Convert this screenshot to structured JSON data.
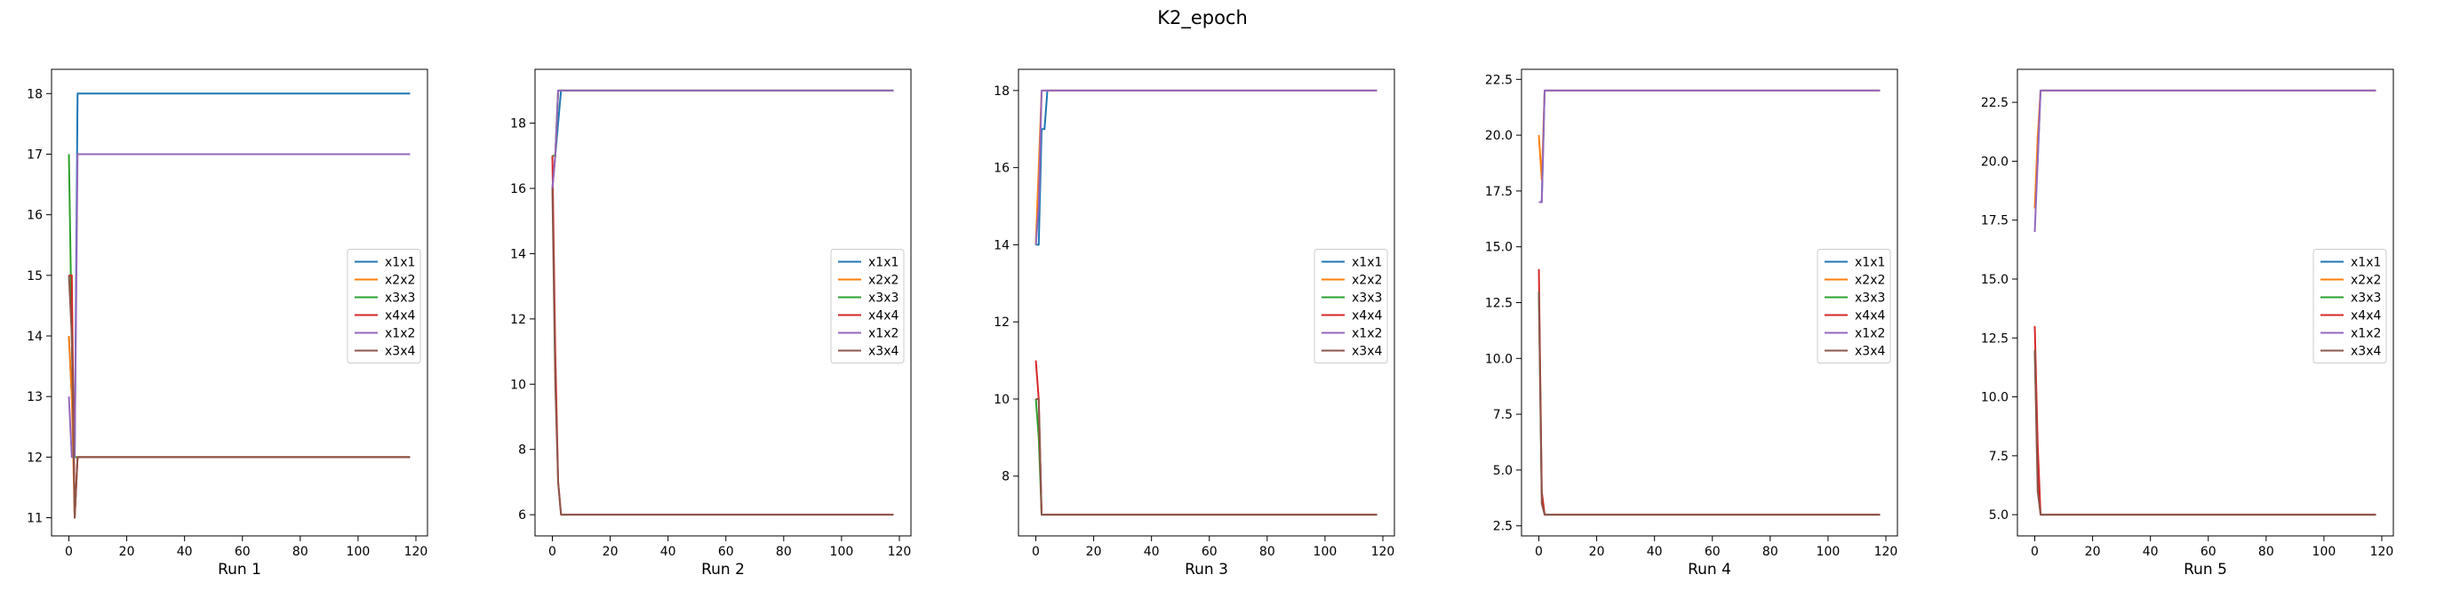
{
  "figure": {
    "title": "K2_epoch"
  },
  "colors": {
    "x1x1": "#1f77b4",
    "x2x2": "#ff7f0e",
    "x3x3": "#2ca02c",
    "x4x4": "#d62728",
    "x1x2": "#9467bd",
    "x3x4": "#8c564b"
  },
  "chart_data": [
    {
      "type": "line",
      "xlabel": "Run 1",
      "xlim": [
        -6,
        124
      ],
      "ylim": [
        10.7,
        18.4
      ],
      "xticks": [
        0,
        20,
        40,
        60,
        80,
        100,
        120
      ],
      "yticks": [
        11,
        12,
        13,
        14,
        15,
        16,
        17,
        18
      ],
      "ytick_labels": [
        "11",
        "12",
        "13",
        "14",
        "15",
        "16",
        "17",
        "18"
      ],
      "legend_position": "center-right",
      "series": [
        {
          "name": "x1x1",
          "points": [
            [
              0,
              14
            ],
            [
              1,
              13
            ],
            [
              2,
              12
            ],
            [
              3,
              18
            ],
            [
              118,
              18
            ]
          ]
        },
        {
          "name": "x2x2",
          "points": [
            [
              0,
              14
            ],
            [
              1,
              13
            ],
            [
              2,
              11
            ],
            [
              3,
              12
            ],
            [
              118,
              12
            ]
          ]
        },
        {
          "name": "x3x3",
          "points": [
            [
              0,
              17
            ],
            [
              1,
              14
            ],
            [
              2,
              12
            ],
            [
              3,
              12
            ],
            [
              118,
              12
            ]
          ]
        },
        {
          "name": "x4x4",
          "points": [
            [
              0,
              15
            ],
            [
              1,
              15
            ],
            [
              2,
              11
            ],
            [
              3,
              12
            ],
            [
              118,
              12
            ]
          ]
        },
        {
          "name": "x1x2",
          "points": [
            [
              0,
              13
            ],
            [
              1,
              12
            ],
            [
              2,
              12
            ],
            [
              3,
              17
            ],
            [
              118,
              17
            ]
          ]
        },
        {
          "name": "x3x4",
          "points": [
            [
              0,
              15
            ],
            [
              1,
              14
            ],
            [
              2,
              11
            ],
            [
              3,
              12
            ],
            [
              118,
              12
            ]
          ]
        }
      ]
    },
    {
      "type": "line",
      "xlabel": "Run 2",
      "xlim": [
        -6,
        124
      ],
      "ylim": [
        5.35,
        19.65
      ],
      "xticks": [
        0,
        20,
        40,
        60,
        80,
        100,
        120
      ],
      "yticks": [
        6,
        8,
        10,
        12,
        14,
        16,
        18
      ],
      "ytick_labels": [
        "6",
        "8",
        "10",
        "12",
        "14",
        "16",
        "18"
      ],
      "legend_position": "center-right",
      "series": [
        {
          "name": "x1x1",
          "points": [
            [
              0,
              16
            ],
            [
              1,
              17
            ],
            [
              2,
              18
            ],
            [
              3,
              19
            ],
            [
              118,
              19
            ]
          ]
        },
        {
          "name": "x2x2",
          "points": [
            [
              0,
              16
            ],
            [
              1,
              17
            ],
            [
              2,
              19
            ],
            [
              3,
              19
            ],
            [
              118,
              19
            ]
          ]
        },
        {
          "name": "x3x3",
          "points": [
            [
              0,
              17
            ],
            [
              1,
              17
            ],
            [
              2,
              19
            ],
            [
              3,
              19
            ],
            [
              118,
              19
            ]
          ]
        },
        {
          "name": "x4x4",
          "points": [
            [
              0,
              17
            ],
            [
              1,
              11
            ],
            [
              2,
              7
            ],
            [
              3,
              6
            ],
            [
              118,
              6
            ]
          ]
        },
        {
          "name": "x1x2",
          "points": [
            [
              0,
              16
            ],
            [
              1,
              17
            ],
            [
              2,
              19
            ],
            [
              3,
              19
            ],
            [
              118,
              19
            ]
          ]
        },
        {
          "name": "x3x4",
          "points": [
            [
              0,
              16
            ],
            [
              1,
              10
            ],
            [
              2,
              7
            ],
            [
              3,
              6
            ],
            [
              118,
              6
            ]
          ]
        }
      ]
    },
    {
      "type": "line",
      "xlabel": "Run 3",
      "xlim": [
        -6,
        124
      ],
      "ylim": [
        6.45,
        18.55
      ],
      "xticks": [
        0,
        20,
        40,
        60,
        80,
        100,
        120
      ],
      "yticks": [
        8,
        10,
        12,
        14,
        16,
        18
      ],
      "ytick_labels": [
        "8",
        "10",
        "12",
        "14",
        "16",
        "18"
      ],
      "legend_position": "center-right",
      "series": [
        {
          "name": "x1x1",
          "points": [
            [
              0,
              14
            ],
            [
              1,
              14
            ],
            [
              2,
              17
            ],
            [
              3,
              17
            ],
            [
              4,
              18
            ],
            [
              118,
              18
            ]
          ]
        },
        {
          "name": "x2x2",
          "points": [
            [
              0,
              14
            ],
            [
              1,
              16
            ],
            [
              2,
              18
            ],
            [
              3,
              18
            ],
            [
              118,
              18
            ]
          ]
        },
        {
          "name": "x3x3",
          "points": [
            [
              0,
              10
            ],
            [
              1,
              9
            ],
            [
              2,
              7
            ],
            [
              3,
              7
            ],
            [
              118,
              7
            ]
          ]
        },
        {
          "name": "x4x4",
          "points": [
            [
              0,
              11
            ],
            [
              1,
              10
            ],
            [
              2,
              7
            ],
            [
              3,
              7
            ],
            [
              118,
              7
            ]
          ]
        },
        {
          "name": "x1x2",
          "points": [
            [
              0,
              14
            ],
            [
              1,
              15
            ],
            [
              2,
              18
            ],
            [
              3,
              18
            ],
            [
              118,
              18
            ]
          ]
        },
        {
          "name": "x3x4",
          "points": [
            [
              0,
              10
            ],
            [
              1,
              10
            ],
            [
              2,
              7
            ],
            [
              3,
              7
            ],
            [
              118,
              7
            ]
          ]
        }
      ]
    },
    {
      "type": "line",
      "xlabel": "Run 4",
      "xlim": [
        -6,
        124
      ],
      "ylim": [
        2.05,
        22.95
      ],
      "xticks": [
        0,
        20,
        40,
        60,
        80,
        100,
        120
      ],
      "yticks": [
        2.5,
        5.0,
        7.5,
        10.0,
        12.5,
        15.0,
        17.5,
        20.0,
        22.5
      ],
      "ytick_labels": [
        "2.5",
        "5.0",
        "7.5",
        "10.0",
        "12.5",
        "15.0",
        "17.5",
        "20.0",
        "22.5"
      ],
      "legend_position": "center-right",
      "series": [
        {
          "name": "x1x1",
          "points": [
            [
              0,
              17
            ],
            [
              1,
              17
            ],
            [
              2,
              22
            ],
            [
              3,
              22
            ],
            [
              118,
              22
            ]
          ]
        },
        {
          "name": "x2x2",
          "points": [
            [
              0,
              20
            ],
            [
              1,
              18
            ],
            [
              2,
              22
            ],
            [
              3,
              22
            ],
            [
              118,
              22
            ]
          ]
        },
        {
          "name": "x3x3",
          "points": [
            [
              0,
              13
            ],
            [
              1,
              4
            ],
            [
              2,
              3
            ],
            [
              3,
              3
            ],
            [
              118,
              3
            ]
          ]
        },
        {
          "name": "x4x4",
          "points": [
            [
              0,
              14
            ],
            [
              1,
              4
            ],
            [
              2,
              3
            ],
            [
              3,
              3
            ],
            [
              118,
              3
            ]
          ]
        },
        {
          "name": "x1x2",
          "points": [
            [
              0,
              17
            ],
            [
              1,
              17
            ],
            [
              2,
              22
            ],
            [
              3,
              22
            ],
            [
              118,
              22
            ]
          ]
        },
        {
          "name": "x3x4",
          "points": [
            [
              0,
              13
            ],
            [
              1,
              3.5
            ],
            [
              2,
              3
            ],
            [
              3,
              3
            ],
            [
              118,
              3
            ]
          ]
        }
      ]
    },
    {
      "type": "line",
      "xlabel": "Run 5",
      "xlim": [
        -6,
        124
      ],
      "ylim": [
        4.1,
        23.9
      ],
      "xticks": [
        0,
        20,
        40,
        60,
        80,
        100,
        120
      ],
      "yticks": [
        5.0,
        7.5,
        10.0,
        12.5,
        15.0,
        17.5,
        20.0,
        22.5
      ],
      "ytick_labels": [
        "5.0",
        "7.5",
        "10.0",
        "12.5",
        "15.0",
        "17.5",
        "20.0",
        "22.5"
      ],
      "legend_position": "center-right",
      "series": [
        {
          "name": "x1x1",
          "points": [
            [
              0,
              18
            ],
            [
              1,
              20
            ],
            [
              2,
              23
            ],
            [
              3,
              23
            ],
            [
              118,
              23
            ]
          ]
        },
        {
          "name": "x2x2",
          "points": [
            [
              0,
              18
            ],
            [
              1,
              21
            ],
            [
              2,
              23
            ],
            [
              3,
              23
            ],
            [
              118,
              23
            ]
          ]
        },
        {
          "name": "x3x3",
          "points": [
            [
              0,
              12
            ],
            [
              1,
              7
            ],
            [
              2,
              5
            ],
            [
              3,
              5
            ],
            [
              118,
              5
            ]
          ]
        },
        {
          "name": "x4x4",
          "points": [
            [
              0,
              13
            ],
            [
              1,
              8
            ],
            [
              2,
              5
            ],
            [
              3,
              5
            ],
            [
              118,
              5
            ]
          ]
        },
        {
          "name": "x1x2",
          "points": [
            [
              0,
              17
            ],
            [
              1,
              20
            ],
            [
              2,
              23
            ],
            [
              3,
              23
            ],
            [
              118,
              23
            ]
          ]
        },
        {
          "name": "x3x4",
          "points": [
            [
              0,
              12
            ],
            [
              1,
              6
            ],
            [
              2,
              5
            ],
            [
              3,
              5
            ],
            [
              118,
              5
            ]
          ]
        }
      ]
    }
  ]
}
